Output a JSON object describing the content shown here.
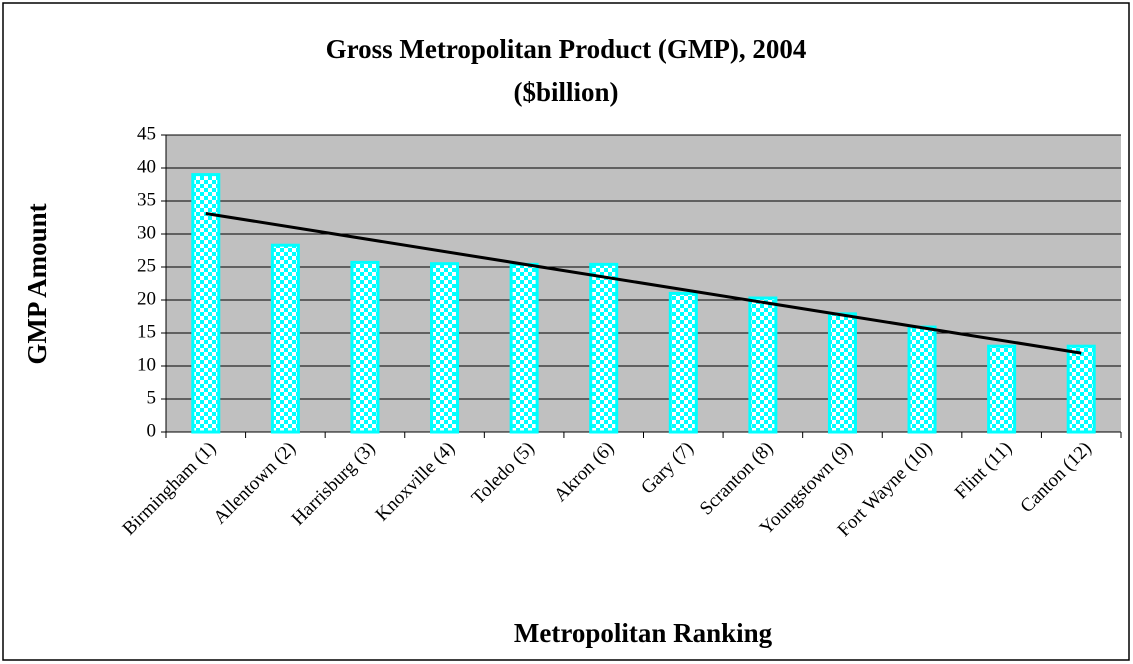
{
  "chart_data": {
    "type": "bar",
    "title": "Gross Metropolitan Product (GMP), 2004",
    "subtitle": "($billion)",
    "y_label": "GMP Amount",
    "x_label": "Metropolitan Ranking",
    "categories": [
      "Birmingham (1)",
      "Allentown (2)",
      "Harrisburg (3)",
      "Knoxville (4)",
      "Toledo (5)",
      "Akron (6)",
      "Gary (7)",
      "Scranton (8)",
      "Youngstown (9)",
      "Fort Wayne (10)",
      "Flint (11)",
      "Canton (12)"
    ],
    "values": [
      39,
      28.3,
      25.7,
      25.5,
      25.4,
      25.4,
      21,
      20.3,
      17.9,
      15.9,
      13,
      13
    ],
    "color": "#00ffff",
    "plot_background": "#c0c0c0",
    "trendline": "linear",
    "ylim": [
      0,
      45
    ],
    "yticks": [
      0,
      5,
      10,
      15,
      20,
      25,
      30,
      35,
      40,
      45
    ],
    "grid": true
  }
}
